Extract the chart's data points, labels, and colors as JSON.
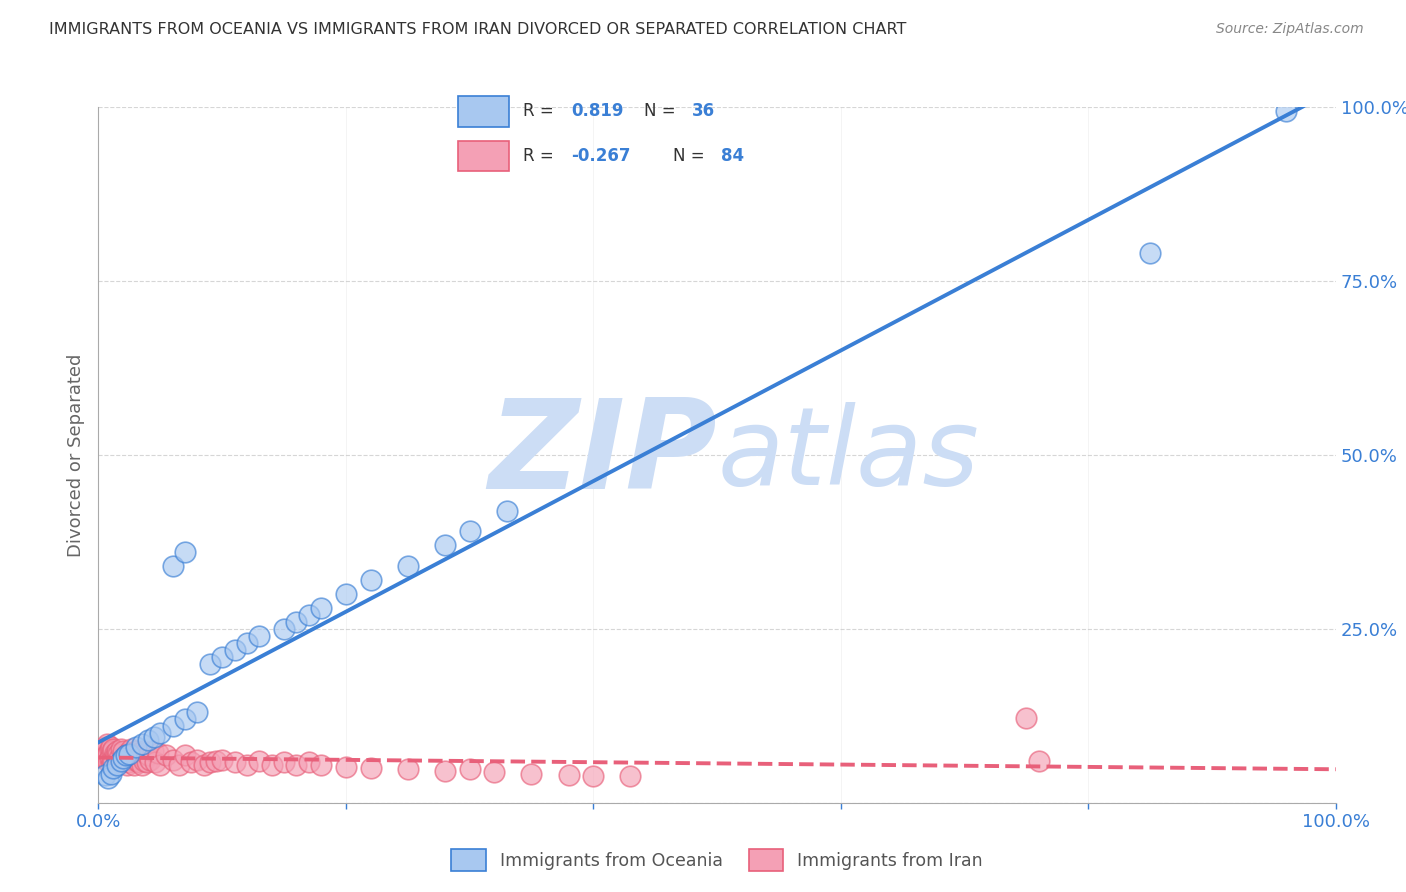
{
  "title": "IMMIGRANTS FROM OCEANIA VS IMMIGRANTS FROM IRAN DIVORCED OR SEPARATED CORRELATION CHART",
  "source": "Source: ZipAtlas.com",
  "ylabel": "Divorced or Separated",
  "xmin": 0.0,
  "xmax": 1.0,
  "ymin": 0.0,
  "ymax": 1.0,
  "ytick_values": [
    0.0,
    0.25,
    0.5,
    0.75,
    1.0
  ],
  "legend_oceania": "Immigrants from Oceania",
  "legend_iran": "Immigrants from Iran",
  "r_oceania": 0.819,
  "n_oceania": 36,
  "r_iran": -0.267,
  "n_iran": 84,
  "color_oceania": "#a8c8f0",
  "color_iran": "#f4a0b5",
  "trendline_oceania": "#3a7fd5",
  "trendline_iran": "#e8607a",
  "watermark_color": "#ccddf5",
  "background_color": "#ffffff",
  "grid_color": "#cccccc",
  "oceania_x": [
    0.005,
    0.008,
    0.01,
    0.012,
    0.015,
    0.018,
    0.02,
    0.022,
    0.025,
    0.03,
    0.035,
    0.04,
    0.045,
    0.05,
    0.06,
    0.07,
    0.08,
    0.09,
    0.1,
    0.11,
    0.12,
    0.13,
    0.15,
    0.06,
    0.07,
    0.16,
    0.17,
    0.18,
    0.2,
    0.22,
    0.25,
    0.28,
    0.3,
    0.33,
    0.85,
    0.96
  ],
  "oceania_y": [
    0.04,
    0.035,
    0.042,
    0.05,
    0.055,
    0.06,
    0.065,
    0.068,
    0.07,
    0.08,
    0.085,
    0.09,
    0.095,
    0.1,
    0.11,
    0.12,
    0.13,
    0.2,
    0.21,
    0.22,
    0.23,
    0.24,
    0.25,
    0.34,
    0.36,
    0.26,
    0.27,
    0.28,
    0.3,
    0.32,
    0.34,
    0.37,
    0.39,
    0.42,
    0.79,
    0.995
  ],
  "iran_x": [
    0.002,
    0.003,
    0.004,
    0.004,
    0.005,
    0.005,
    0.006,
    0.006,
    0.007,
    0.007,
    0.008,
    0.008,
    0.009,
    0.009,
    0.01,
    0.01,
    0.011,
    0.011,
    0.012,
    0.012,
    0.013,
    0.014,
    0.015,
    0.015,
    0.016,
    0.017,
    0.018,
    0.019,
    0.02,
    0.021,
    0.022,
    0.023,
    0.024,
    0.025,
    0.026,
    0.027,
    0.028,
    0.029,
    0.03,
    0.031,
    0.032,
    0.033,
    0.034,
    0.035,
    0.036,
    0.037,
    0.038,
    0.039,
    0.04,
    0.042,
    0.044,
    0.046,
    0.048,
    0.05,
    0.055,
    0.06,
    0.065,
    0.07,
    0.075,
    0.08,
    0.085,
    0.09,
    0.095,
    0.1,
    0.11,
    0.12,
    0.13,
    0.14,
    0.15,
    0.16,
    0.17,
    0.18,
    0.2,
    0.22,
    0.25,
    0.28,
    0.3,
    0.32,
    0.35,
    0.38,
    0.4,
    0.43,
    0.75,
    0.76
  ],
  "iran_y": [
    0.068,
    0.072,
    0.075,
    0.065,
    0.08,
    0.07,
    0.078,
    0.062,
    0.085,
    0.068,
    0.072,
    0.06,
    0.078,
    0.065,
    0.08,
    0.055,
    0.075,
    0.062,
    0.078,
    0.058,
    0.072,
    0.068,
    0.075,
    0.058,
    0.07,
    0.065,
    0.078,
    0.06,
    0.075,
    0.062,
    0.068,
    0.055,
    0.072,
    0.058,
    0.078,
    0.062,
    0.068,
    0.055,
    0.075,
    0.06,
    0.072,
    0.058,
    0.068,
    0.055,
    0.075,
    0.06,
    0.072,
    0.058,
    0.068,
    0.062,
    0.075,
    0.058,
    0.072,
    0.055,
    0.068,
    0.062,
    0.055,
    0.068,
    0.058,
    0.062,
    0.055,
    0.058,
    0.06,
    0.062,
    0.058,
    0.055,
    0.06,
    0.055,
    0.058,
    0.055,
    0.058,
    0.055,
    0.052,
    0.05,
    0.048,
    0.045,
    0.048,
    0.044,
    0.042,
    0.04,
    0.038,
    0.038,
    0.122,
    0.06
  ]
}
